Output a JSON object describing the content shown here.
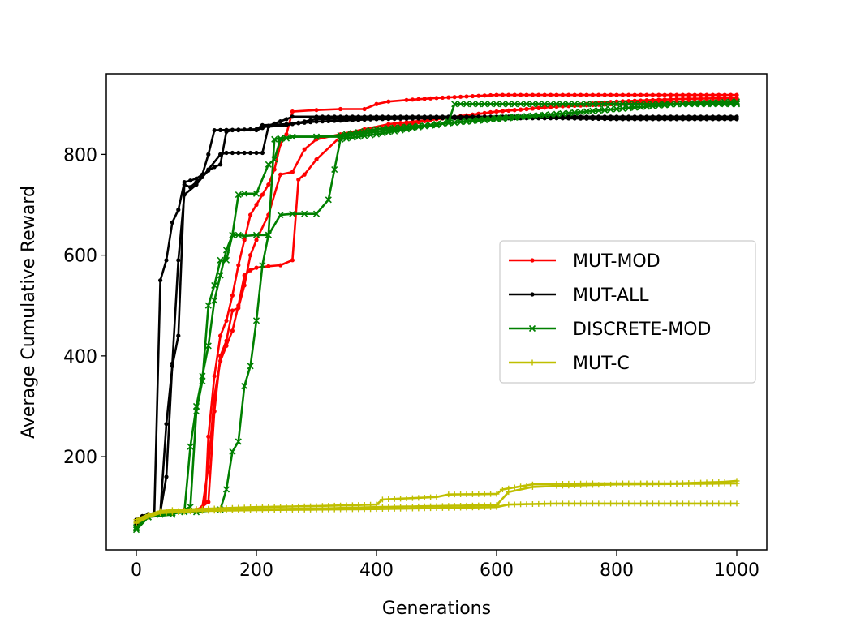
{
  "chart_data": {
    "type": "line",
    "title": "",
    "xlabel": "Generations",
    "ylabel": "Average Cumulative Reward",
    "xlim": [
      -50,
      1050
    ],
    "ylim": [
      15,
      960
    ],
    "xticks": [
      0,
      200,
      400,
      600,
      800,
      1000
    ],
    "yticks": [
      200,
      400,
      600,
      800
    ],
    "grid": false,
    "legend_position": "center-right",
    "series": [
      {
        "name": "MUT-MOD",
        "color": "#ff0000",
        "marker": "dot",
        "show_in_legend": true,
        "x": [
          0,
          10,
          20,
          40,
          60,
          80,
          100,
          110,
          115,
          120,
          130,
          140,
          150,
          160,
          170,
          180,
          190,
          200,
          210,
          220,
          230,
          240,
          250,
          260,
          300,
          340,
          380,
          400,
          420,
          450,
          500,
          600,
          700,
          800,
          900,
          1000
        ],
        "y": [
          70,
          78,
          85,
          90,
          93,
          95,
          95,
          100,
          110,
          240,
          360,
          440,
          470,
          520,
          580,
          630,
          680,
          700,
          720,
          740,
          770,
          820,
          840,
          885,
          888,
          890,
          890,
          900,
          905,
          908,
          912,
          918,
          918,
          918,
          918,
          918
        ]
      },
      {
        "name": "MUT-MOD",
        "color": "#ff0000",
        "marker": "dot",
        "show_in_legend": false,
        "x": [
          0,
          20,
          60,
          100,
          120,
          130,
          140,
          150,
          160,
          170,
          180,
          190,
          200,
          220,
          240,
          260,
          280,
          300,
          340,
          380,
          420,
          500,
          600,
          700,
          800,
          900,
          1000
        ],
        "y": [
          65,
          80,
          90,
          92,
          110,
          290,
          400,
          430,
          490,
          495,
          540,
          600,
          630,
          680,
          760,
          765,
          810,
          830,
          840,
          850,
          860,
          870,
          885,
          895,
          905,
          910,
          912
        ]
      },
      {
        "name": "MUT-MOD",
        "color": "#ff0000",
        "marker": "dot",
        "show_in_legend": false,
        "x": [
          0,
          20,
          60,
          100,
          110,
          120,
          130,
          140,
          150,
          160,
          170,
          180,
          190,
          200,
          220,
          240,
          260,
          270,
          280,
          300,
          340,
          400,
          500,
          600,
          700,
          800,
          900,
          1000
        ],
        "y": [
          62,
          80,
          90,
          92,
          100,
          180,
          320,
          390,
          420,
          450,
          500,
          560,
          570,
          575,
          578,
          580,
          590,
          750,
          760,
          790,
          835,
          850,
          870,
          885,
          895,
          900,
          905,
          905
        ]
      },
      {
        "name": "MUT-ALL",
        "color": "#000000",
        "marker": "dot",
        "show_in_legend": true,
        "x": [
          0,
          10,
          20,
          30,
          40,
          50,
          60,
          70,
          80,
          90,
          100,
          110,
          120,
          130,
          200,
          210,
          250,
          300,
          400,
          500,
          600,
          700,
          800,
          900,
          1000
        ],
        "y": [
          75,
          82,
          86,
          88,
          550,
          590,
          665,
          690,
          745,
          748,
          752,
          760,
          800,
          848,
          850,
          858,
          860,
          865,
          870,
          872,
          872,
          872,
          872,
          872,
          872
        ]
      },
      {
        "name": "MUT-ALL",
        "color": "#000000",
        "marker": "dot",
        "show_in_legend": false,
        "x": [
          0,
          20,
          40,
          50,
          60,
          70,
          80,
          90,
          100,
          110,
          120,
          130,
          140,
          150,
          160,
          170,
          200,
          250,
          260,
          300,
          400,
          500,
          600,
          700,
          800,
          900,
          1000
        ],
        "y": [
          70,
          80,
          90,
          265,
          380,
          440,
          740,
          735,
          745,
          755,
          768,
          775,
          780,
          845,
          848,
          848,
          848,
          870,
          875,
          875,
          875,
          875,
          875,
          875,
          875,
          875,
          875
        ]
      },
      {
        "name": "MUT-ALL",
        "color": "#000000",
        "marker": "dot",
        "show_in_legend": false,
        "x": [
          0,
          20,
          40,
          50,
          60,
          70,
          80,
          100,
          120,
          140,
          150,
          160,
          210,
          220,
          250,
          300,
          400,
          500,
          600,
          700,
          800,
          900,
          1000
        ],
        "y": [
          65,
          82,
          90,
          160,
          385,
          590,
          720,
          740,
          770,
          800,
          803,
          803,
          803,
          855,
          858,
          870,
          872,
          872,
          872,
          872,
          870,
          870,
          870
        ]
      },
      {
        "name": "DISCRETE-MOD",
        "color": "#008000",
        "marker": "x",
        "show_in_legend": true,
        "x": [
          0,
          20,
          40,
          60,
          80,
          90,
          100,
          110,
          120,
          130,
          140,
          150,
          160,
          170,
          180,
          200,
          220,
          230,
          240,
          250,
          260,
          300,
          340,
          400,
          450,
          500,
          520,
          530,
          600,
          700,
          800,
          900,
          1000
        ],
        "y": [
          60,
          80,
          85,
          88,
          90,
          220,
          300,
          360,
          420,
          510,
          560,
          610,
          640,
          720,
          722,
          722,
          780,
          790,
          830,
          832,
          835,
          835,
          838,
          850,
          855,
          858,
          865,
          900,
          900,
          900,
          900,
          900,
          905
        ]
      },
      {
        "name": "DISCRETE-MOD",
        "color": "#008000",
        "marker": "x",
        "show_in_legend": false,
        "x": [
          0,
          20,
          60,
          90,
          100,
          110,
          120,
          130,
          140,
          150,
          160,
          170,
          180,
          200,
          220,
          230,
          240,
          260,
          300,
          340,
          400,
          500,
          600,
          700,
          800,
          900,
          1000
        ],
        "y": [
          58,
          80,
          85,
          100,
          290,
          350,
          500,
          540,
          590,
          590,
          640,
          640,
          638,
          640,
          640,
          830,
          832,
          835,
          835,
          835,
          845,
          860,
          872,
          880,
          890,
          900,
          900
        ]
      },
      {
        "name": "DISCRETE-MOD",
        "color": "#008000",
        "marker": "x",
        "show_in_legend": false,
        "x": [
          0,
          20,
          60,
          100,
          140,
          150,
          160,
          170,
          180,
          190,
          200,
          210,
          220,
          240,
          260,
          280,
          300,
          320,
          330,
          340,
          400,
          500,
          600,
          700,
          800,
          900,
          1000
        ],
        "y": [
          55,
          80,
          88,
          90,
          95,
          135,
          210,
          230,
          340,
          380,
          470,
          580,
          640,
          680,
          682,
          682,
          682,
          710,
          770,
          830,
          840,
          860,
          870,
          880,
          890,
          900,
          902
        ]
      },
      {
        "name": "MUT-C",
        "color": "#bfbf00",
        "marker": "plus",
        "show_in_legend": true,
        "x": [
          0,
          20,
          40,
          60,
          100,
          200,
          300,
          400,
          410,
          500,
          520,
          600,
          610,
          660,
          700,
          760,
          800,
          900,
          980,
          1000
        ],
        "y": [
          75,
          85,
          92,
          94,
          96,
          100,
          102,
          105,
          115,
          120,
          125,
          126,
          135,
          145,
          146,
          147,
          147,
          147,
          150,
          152
        ]
      },
      {
        "name": "MUT-C",
        "color": "#bfbf00",
        "marker": "plus",
        "show_in_legend": false,
        "x": [
          0,
          20,
          40,
          100,
          200,
          300,
          400,
          500,
          600,
          620,
          660,
          700,
          800,
          900,
          1000
        ],
        "y": [
          70,
          82,
          90,
          94,
          96,
          97,
          100,
          102,
          104,
          130,
          140,
          142,
          145,
          146,
          147
        ]
      },
      {
        "name": "MUT-C",
        "color": "#bfbf00",
        "marker": "plus",
        "show_in_legend": false,
        "x": [
          0,
          20,
          40,
          100,
          200,
          300,
          400,
          500,
          600,
          620,
          700,
          800,
          900,
          1000
        ],
        "y": [
          68,
          80,
          88,
          92,
          94,
          95,
          96,
          98,
          100,
          105,
          107,
          107,
          107,
          107
        ]
      }
    ]
  }
}
